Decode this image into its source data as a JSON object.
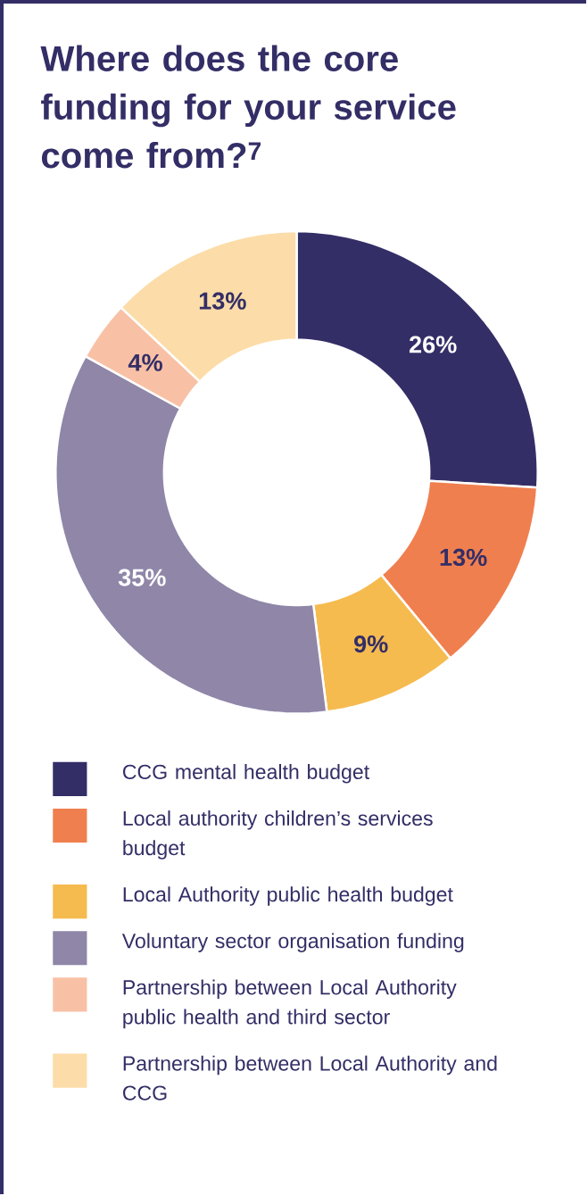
{
  "chart_data": {
    "type": "donut",
    "title": "Where does the core funding for your service come from?$^{7}$",
    "categories": [
      "CCG mental health budget",
      "Local authority children’s services budget",
      "Local Authority public health budget",
      "Voluntary sector organisation funding",
      "Partnership between Local Authority public health and third sector",
      "Partnership between Local Authority and CCG"
    ],
    "values": [
      26,
      13,
      9,
      35,
      4,
      13
    ],
    "colors": [
      "#332e66",
      "#f07f4f",
      "#f5bb4f",
      "#8f86a8",
      "#f8c1a6",
      "#fcdca8"
    ],
    "value_labels": [
      "26%",
      "13%",
      "9%",
      "35%",
      "4%",
      "13%"
    ],
    "legend": "bottom"
  }
}
